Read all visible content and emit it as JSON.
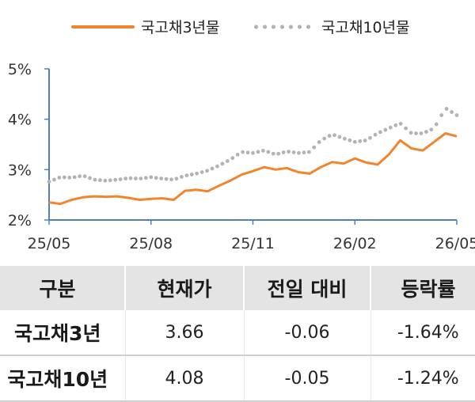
{
  "legend": {
    "series1": "국고채3년물",
    "series2": "국고채10년물"
  },
  "chart_data": {
    "type": "line",
    "x_ticks": [
      "25/05",
      "25/08",
      "25/11",
      "26/02",
      "26/05"
    ],
    "y_ticks": [
      "5%",
      "4%",
      "3%",
      "2%"
    ],
    "ylim": [
      2,
      5
    ],
    "grid": false,
    "legend_position": "top",
    "series": [
      {
        "name": "국고채3년물",
        "style": "solid",
        "color": "#f0852d",
        "x": [
          "25/05",
          "25/05",
          "25/05",
          "25/06",
          "25/06",
          "25/06",
          "25/07",
          "25/07",
          "25/07",
          "25/08",
          "25/08",
          "25/08",
          "25/09",
          "25/09",
          "25/09",
          "25/10",
          "25/10",
          "25/10",
          "25/11",
          "25/11",
          "25/11",
          "25/12",
          "25/12",
          "25/12",
          "26/01",
          "26/01",
          "26/01",
          "26/02",
          "26/02",
          "26/02",
          "26/03",
          "26/03",
          "26/03",
          "26/04",
          "26/04",
          "26/04",
          "26/05"
        ],
        "values": [
          2.35,
          2.32,
          2.4,
          2.45,
          2.47,
          2.46,
          2.47,
          2.44,
          2.4,
          2.42,
          2.43,
          2.4,
          2.58,
          2.6,
          2.57,
          2.68,
          2.78,
          2.9,
          2.97,
          3.05,
          3.0,
          3.03,
          2.95,
          2.92,
          3.05,
          3.15,
          3.12,
          3.22,
          3.14,
          3.1,
          3.3,
          3.58,
          3.42,
          3.38,
          3.55,
          3.72,
          3.66
        ]
      },
      {
        "name": "국고채10년물",
        "style": "dotted",
        "color": "#b3b3b3",
        "x": [
          "25/05",
          "25/05",
          "25/05",
          "25/06",
          "25/06",
          "25/06",
          "25/07",
          "25/07",
          "25/07",
          "25/08",
          "25/08",
          "25/08",
          "25/09",
          "25/09",
          "25/09",
          "25/10",
          "25/10",
          "25/10",
          "25/11",
          "25/11",
          "25/11",
          "25/12",
          "25/12",
          "25/12",
          "26/01",
          "26/01",
          "26/01",
          "26/02",
          "26/02",
          "26/02",
          "26/03",
          "26/03",
          "26/03",
          "26/04",
          "26/04",
          "26/04",
          "26/05"
        ],
        "values": [
          2.76,
          2.85,
          2.84,
          2.88,
          2.8,
          2.78,
          2.8,
          2.83,
          2.82,
          2.85,
          2.82,
          2.8,
          2.88,
          2.92,
          2.98,
          3.08,
          3.2,
          3.35,
          3.33,
          3.38,
          3.3,
          3.36,
          3.33,
          3.35,
          3.58,
          3.7,
          3.62,
          3.55,
          3.58,
          3.72,
          3.82,
          3.92,
          3.72,
          3.72,
          3.82,
          4.22,
          4.08
        ]
      }
    ]
  },
  "table": {
    "headers": [
      "구분",
      "현재가",
      "전일 대비",
      "등락률"
    ],
    "rows": [
      [
        "국고채3년",
        "3.66",
        "-0.06",
        "-1.64%"
      ],
      [
        "국고채10년",
        "4.08",
        "-0.05",
        "-1.24%"
      ]
    ]
  }
}
